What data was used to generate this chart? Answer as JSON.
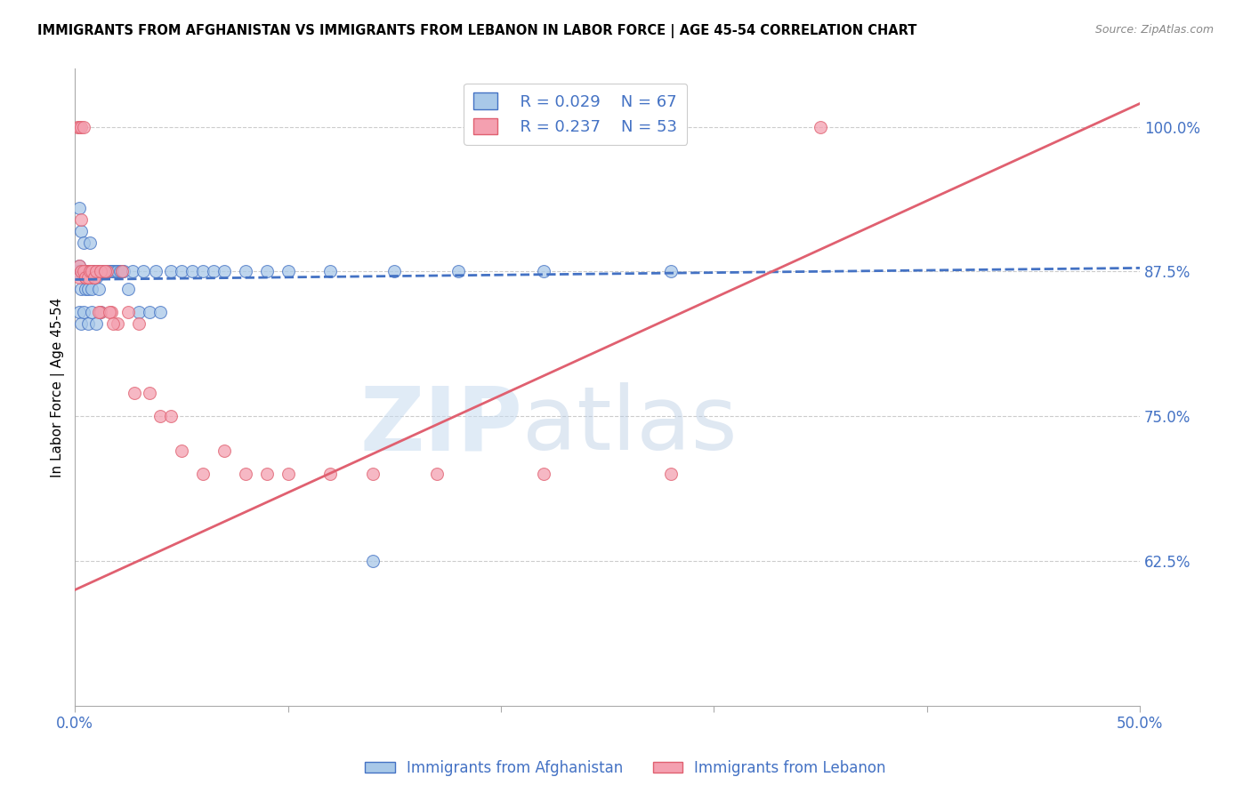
{
  "title": "IMMIGRANTS FROM AFGHANISTAN VS IMMIGRANTS FROM LEBANON IN LABOR FORCE | AGE 45-54 CORRELATION CHART",
  "source": "Source: ZipAtlas.com",
  "ylabel": "In Labor Force | Age 45-54",
  "xlim": [
    0.0,
    0.5
  ],
  "ylim": [
    0.5,
    1.05
  ],
  "yticks": [
    0.625,
    0.75,
    0.875,
    1.0
  ],
  "ytick_labels": [
    "62.5%",
    "75.0%",
    "87.5%",
    "100.0%"
  ],
  "xticks": [
    0.0,
    0.1,
    0.2,
    0.3,
    0.4,
    0.5
  ],
  "xtick_labels": [
    "0.0%",
    "",
    "",
    "",
    "",
    "50.0%"
  ],
  "legend_blue_R": "R = 0.029",
  "legend_blue_N": "N = 67",
  "legend_pink_R": "R = 0.237",
  "legend_pink_N": "N = 53",
  "blue_color": "#A8C8E8",
  "pink_color": "#F4A0B0",
  "trend_blue_color": "#4472C4",
  "trend_pink_color": "#E06070",
  "axis_color": "#4472C4",
  "grid_color": "#CCCCCC",
  "afg_x": [
    0.001,
    0.002,
    0.002,
    0.003,
    0.003,
    0.003,
    0.004,
    0.004,
    0.005,
    0.005,
    0.005,
    0.006,
    0.006,
    0.006,
    0.007,
    0.007,
    0.007,
    0.008,
    0.008,
    0.009,
    0.009,
    0.01,
    0.01,
    0.01,
    0.011,
    0.011,
    0.012,
    0.013,
    0.014,
    0.015,
    0.016,
    0.017,
    0.018,
    0.019,
    0.02,
    0.021,
    0.022,
    0.023,
    0.025,
    0.027,
    0.03,
    0.032,
    0.035,
    0.038,
    0.04,
    0.045,
    0.05,
    0.055,
    0.06,
    0.065,
    0.07,
    0.08,
    0.09,
    0.1,
    0.12,
    0.15,
    0.18,
    0.22,
    0.28,
    0.14,
    0.002,
    0.003,
    0.004,
    0.006,
    0.008,
    0.01,
    0.012
  ],
  "afg_y": [
    0.875,
    0.93,
    0.88,
    0.91,
    0.875,
    0.86,
    0.875,
    0.9,
    0.875,
    0.87,
    0.86,
    0.875,
    0.87,
    0.86,
    0.875,
    0.87,
    0.9,
    0.875,
    0.86,
    0.875,
    0.87,
    0.875,
    0.875,
    0.87,
    0.875,
    0.86,
    0.875,
    0.875,
    0.875,
    0.875,
    0.875,
    0.875,
    0.875,
    0.875,
    0.875,
    0.875,
    0.875,
    0.875,
    0.86,
    0.875,
    0.84,
    0.875,
    0.84,
    0.875,
    0.84,
    0.875,
    0.875,
    0.875,
    0.875,
    0.875,
    0.875,
    0.875,
    0.875,
    0.875,
    0.875,
    0.875,
    0.875,
    0.875,
    0.875,
    0.625,
    0.84,
    0.83,
    0.84,
    0.83,
    0.84,
    0.83,
    0.84
  ],
  "leb_x": [
    0.001,
    0.002,
    0.002,
    0.003,
    0.004,
    0.005,
    0.005,
    0.006,
    0.007,
    0.007,
    0.008,
    0.009,
    0.01,
    0.011,
    0.012,
    0.013,
    0.015,
    0.017,
    0.02,
    0.022,
    0.025,
    0.028,
    0.03,
    0.035,
    0.04,
    0.045,
    0.05,
    0.06,
    0.07,
    0.08,
    0.09,
    0.1,
    0.12,
    0.14,
    0.17,
    0.22,
    0.28,
    0.35,
    0.002,
    0.003,
    0.003,
    0.004,
    0.005,
    0.006,
    0.007,
    0.008,
    0.009,
    0.01,
    0.011,
    0.012,
    0.014,
    0.016,
    0.018
  ],
  "leb_y": [
    1.0,
    1.0,
    0.87,
    1.0,
    1.0,
    0.875,
    0.87,
    0.875,
    0.875,
    0.87,
    0.875,
    0.87,
    0.875,
    0.875,
    0.84,
    0.875,
    0.875,
    0.84,
    0.83,
    0.875,
    0.84,
    0.77,
    0.83,
    0.77,
    0.75,
    0.75,
    0.72,
    0.7,
    0.72,
    0.7,
    0.7,
    0.7,
    0.7,
    0.7,
    0.7,
    0.7,
    0.7,
    1.0,
    0.88,
    0.92,
    0.875,
    0.875,
    0.87,
    0.87,
    0.875,
    0.875,
    0.87,
    0.875,
    0.84,
    0.875,
    0.875,
    0.84,
    0.83
  ],
  "blue_trend_x": [
    0.0,
    0.5
  ],
  "blue_trend_y": [
    0.868,
    0.878
  ],
  "pink_trend_x": [
    0.0,
    0.5
  ],
  "pink_trend_y": [
    0.6,
    1.02
  ]
}
